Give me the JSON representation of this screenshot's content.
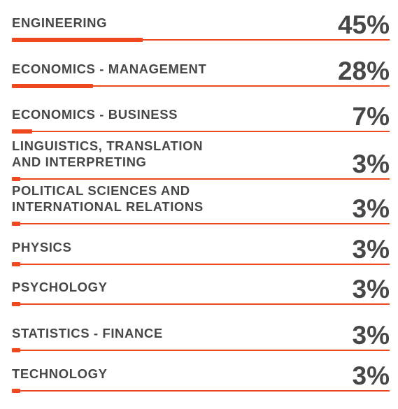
{
  "colors": {
    "accent": "#f0481e",
    "text": "#474747",
    "background": "#ffffff"
  },
  "chart_data": {
    "type": "bar",
    "orientation": "horizontal",
    "categories": [
      "ENGINEERING",
      "ECONOMICS - MANAGEMENT",
      "ECONOMICS - BUSINESS",
      "LINGUISTICS, TRANSLATION\nAND INTERPRETING",
      "POLITICAL SCIENCES AND\nINTERNATIONAL RELATIONS",
      "PHYSICS",
      "PSYCHOLOGY",
      "STATISTICS - FINANCE",
      "TECHNOLOGY"
    ],
    "values": [
      45,
      28,
      7,
      3,
      3,
      3,
      3,
      3,
      3
    ],
    "value_labels": [
      "45%",
      "28%",
      "7%",
      "3%",
      "3%",
      "3%",
      "3%",
      "3%",
      "3%"
    ],
    "unit": "%",
    "xlim": [
      0,
      130
    ],
    "title": "",
    "xlabel": "",
    "ylabel": "",
    "grid": false,
    "legend": "none"
  }
}
